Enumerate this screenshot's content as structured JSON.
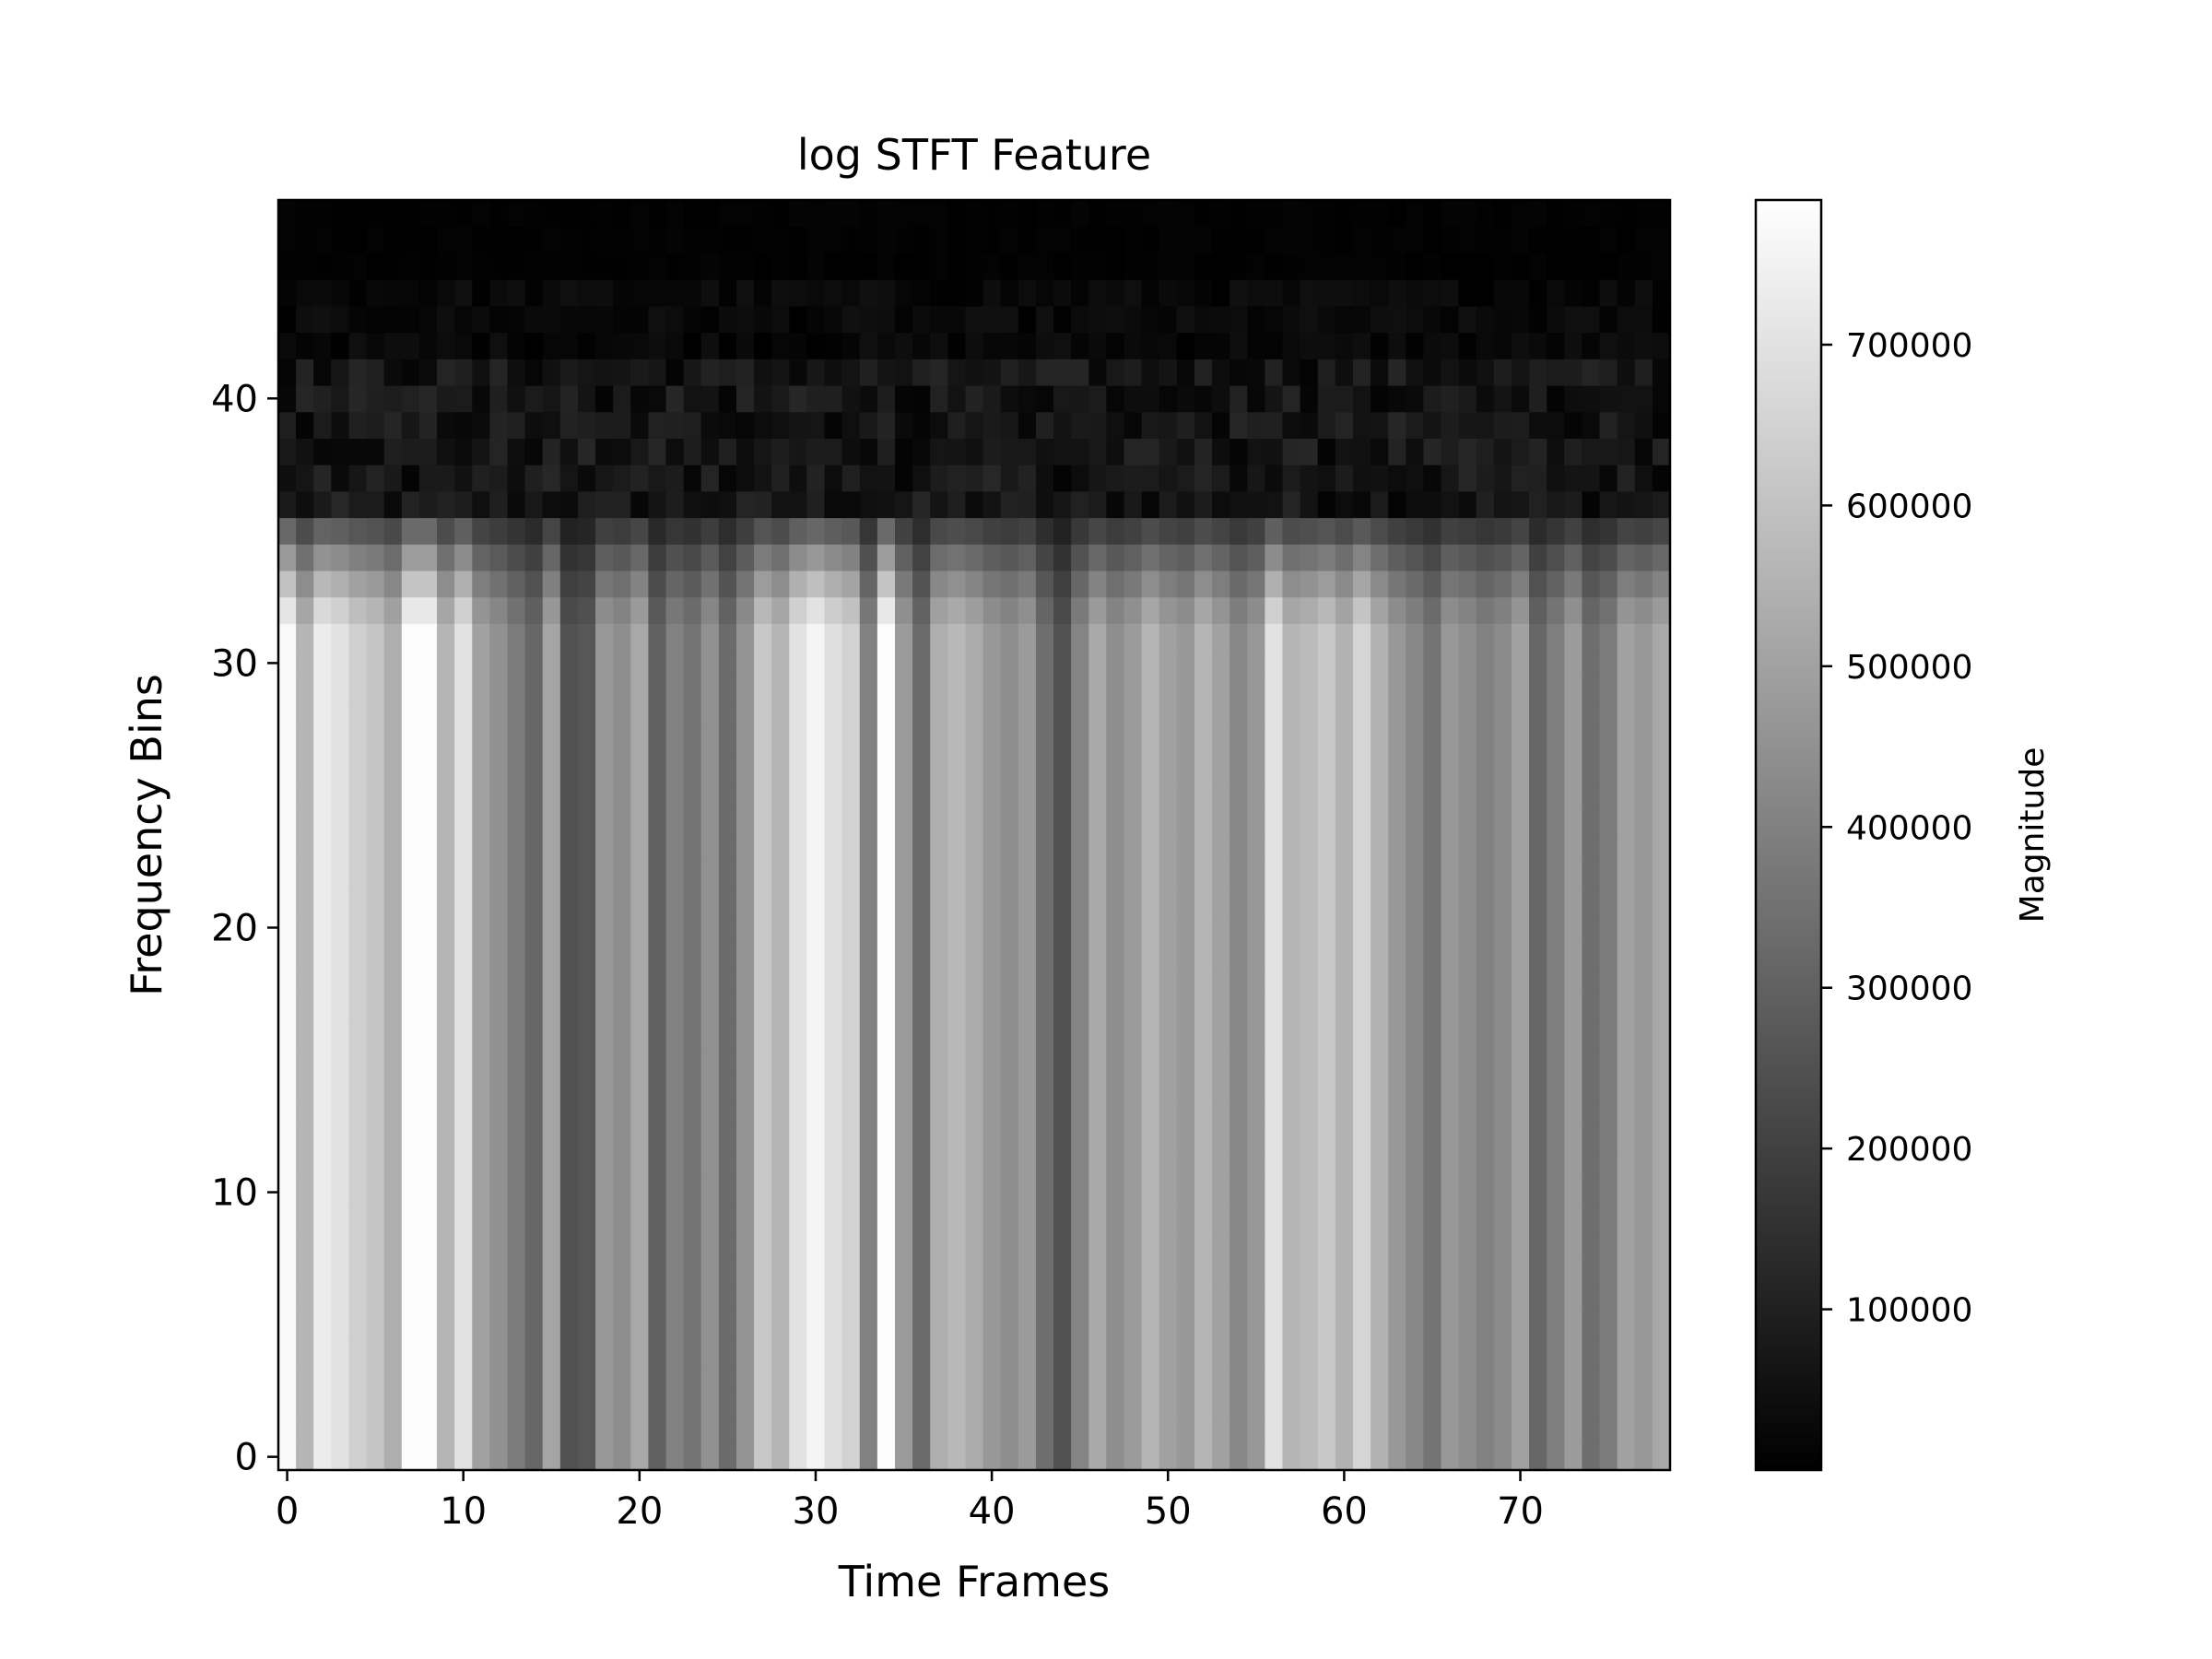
{
  "chart_data": {
    "type": "heatmap",
    "title": "log STFT Feature",
    "xlabel": "Time Frames",
    "ylabel": "Frequency Bins",
    "colorbar_label": "Magnitude",
    "colormap": "gray",
    "xlim": [
      -0.5,
      78.5
    ],
    "ylim": [
      -0.5,
      47.5
    ],
    "n_time_frames": 79,
    "n_freq_bins": 48,
    "x_ticks": [
      0,
      10,
      20,
      30,
      40,
      50,
      60,
      70
    ],
    "y_ticks": [
      0,
      10,
      20,
      30,
      40
    ],
    "colorbar_ticks": [
      100000,
      200000,
      300000,
      400000,
      500000,
      600000,
      700000
    ],
    "colorbar_tick_labels": [
      "100000",
      "200000",
      "300000",
      "400000",
      "500000",
      "600000",
      "700000"
    ],
    "vmin": 0,
    "vmax": 790000,
    "frame_magnitude": [
      770000,
      560000,
      730000,
      700000,
      640000,
      610000,
      540000,
      780000,
      780000,
      560000,
      700000,
      500000,
      450000,
      380000,
      320000,
      510000,
      250000,
      270000,
      470000,
      440000,
      520000,
      300000,
      400000,
      360000,
      450000,
      330000,
      460000,
      620000,
      560000,
      700000,
      760000,
      690000,
      650000,
      400000,
      780000,
      480000,
      330000,
      540000,
      570000,
      530000,
      470000,
      440000,
      480000,
      340000,
      250000,
      410000,
      520000,
      440000,
      480000,
      560000,
      500000,
      470000,
      560000,
      500000,
      420000,
      470000,
      700000,
      560000,
      580000,
      620000,
      550000,
      660000,
      550000,
      470000,
      420000,
      360000,
      470000,
      440000,
      400000,
      430000,
      500000,
      320000,
      390000,
      480000,
      340000,
      380000,
      500000,
      470000,
      520000
    ],
    "band_profile": {
      "rows_0_to_31": 1.0,
      "row_32": 0.92,
      "row_33": 0.78,
      "row_34": 0.62,
      "row_35": 0.42,
      "rows_36_to_41": "noise 10000-120000",
      "rows_42_to_44": "noise 0-50000",
      "rows_45_to_47": "near 0"
    }
  }
}
